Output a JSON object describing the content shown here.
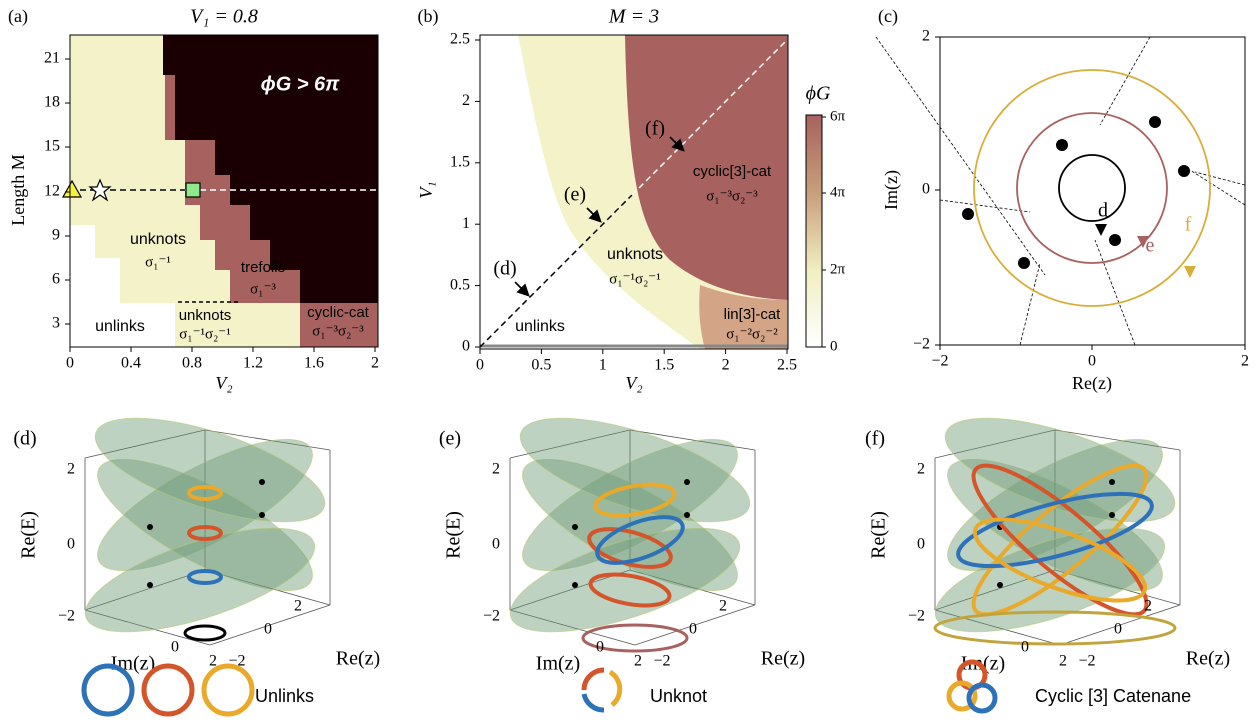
{
  "panels": {
    "a": {
      "label": "(a)",
      "title": "V₁ = 0.8",
      "x_label": "V₂",
      "y_label": "Length M",
      "x_ticks": [
        "0",
        "0.4",
        "0.8",
        "1.2",
        "1.6",
        "2"
      ],
      "y_ticks": [
        "3",
        "6",
        "9",
        "12",
        "15",
        "18",
        "21"
      ],
      "annotations": [
        "ϕG > 6π",
        "unknots",
        "σ₁⁻¹",
        "trefoils",
        "σ₁⁻³",
        "unknots",
        "σ₁⁻¹σ₂⁻¹",
        "unlinks",
        "cyclic-cat",
        "σ₁⁻³σ₂⁻³"
      ]
    },
    "b": {
      "label": "(b)",
      "title": "M = 3",
      "x_label": "V₂",
      "y_label": "V₁",
      "x_ticks": [
        "0",
        "0.5",
        "1",
        "1.5",
        "2",
        "2.5"
      ],
      "y_ticks": [
        "0",
        "0.5",
        "1",
        "1.5",
        "2",
        "2.5"
      ],
      "annotations": [
        "(d)",
        "(e)",
        "(f)",
        "cyclic[3]-cat",
        "σ₁⁻³σ₂⁻³",
        "unknots",
        "σ₁⁻¹σ₂⁻¹",
        "unlinks",
        "lin[3]-cat",
        "σ₁⁻²σ₂⁻²"
      ],
      "colorbar": {
        "label": "ϕG",
        "ticks": [
          "6π",
          "4π",
          "2π",
          "0"
        ]
      }
    },
    "c": {
      "label": "(c)",
      "x_label": "Re(z)",
      "y_label": "Im(z)",
      "x_ticks": [
        "−2",
        "0",
        "2"
      ],
      "y_ticks": [
        "−2",
        "0",
        "2"
      ],
      "annotations": [
        "d",
        "e",
        "f"
      ]
    },
    "d": {
      "label": "(d)",
      "z_label": "Re(E)",
      "z_ticks": [
        "2",
        "0",
        "−2"
      ],
      "im_label": "Im(z)",
      "im_ticks": [
        "0",
        "2"
      ],
      "re_label": "Re(z)",
      "re_ticks": [
        "−2",
        "0",
        "2"
      ],
      "legend": "Unlinks"
    },
    "e": {
      "label": "(e)",
      "z_label": "Re(E)",
      "z_ticks": [
        "2",
        "0",
        "−2"
      ],
      "im_label": "Im(z)",
      "im_ticks": [
        "0",
        "2"
      ],
      "re_label": "Re(z)",
      "re_ticks": [
        "−2",
        "0",
        "2"
      ],
      "legend": "Unknot"
    },
    "f": {
      "label": "(f)",
      "z_label": "Re(E)",
      "z_ticks": [
        "2",
        "0",
        "−2"
      ],
      "im_label": "Im(z)",
      "im_ticks": [
        "0",
        "2"
      ],
      "re_label": "Re(z)",
      "re_ticks": [
        "−2",
        "0",
        "2"
      ],
      "legend": "Cyclic [3] Catenane"
    }
  }
}
